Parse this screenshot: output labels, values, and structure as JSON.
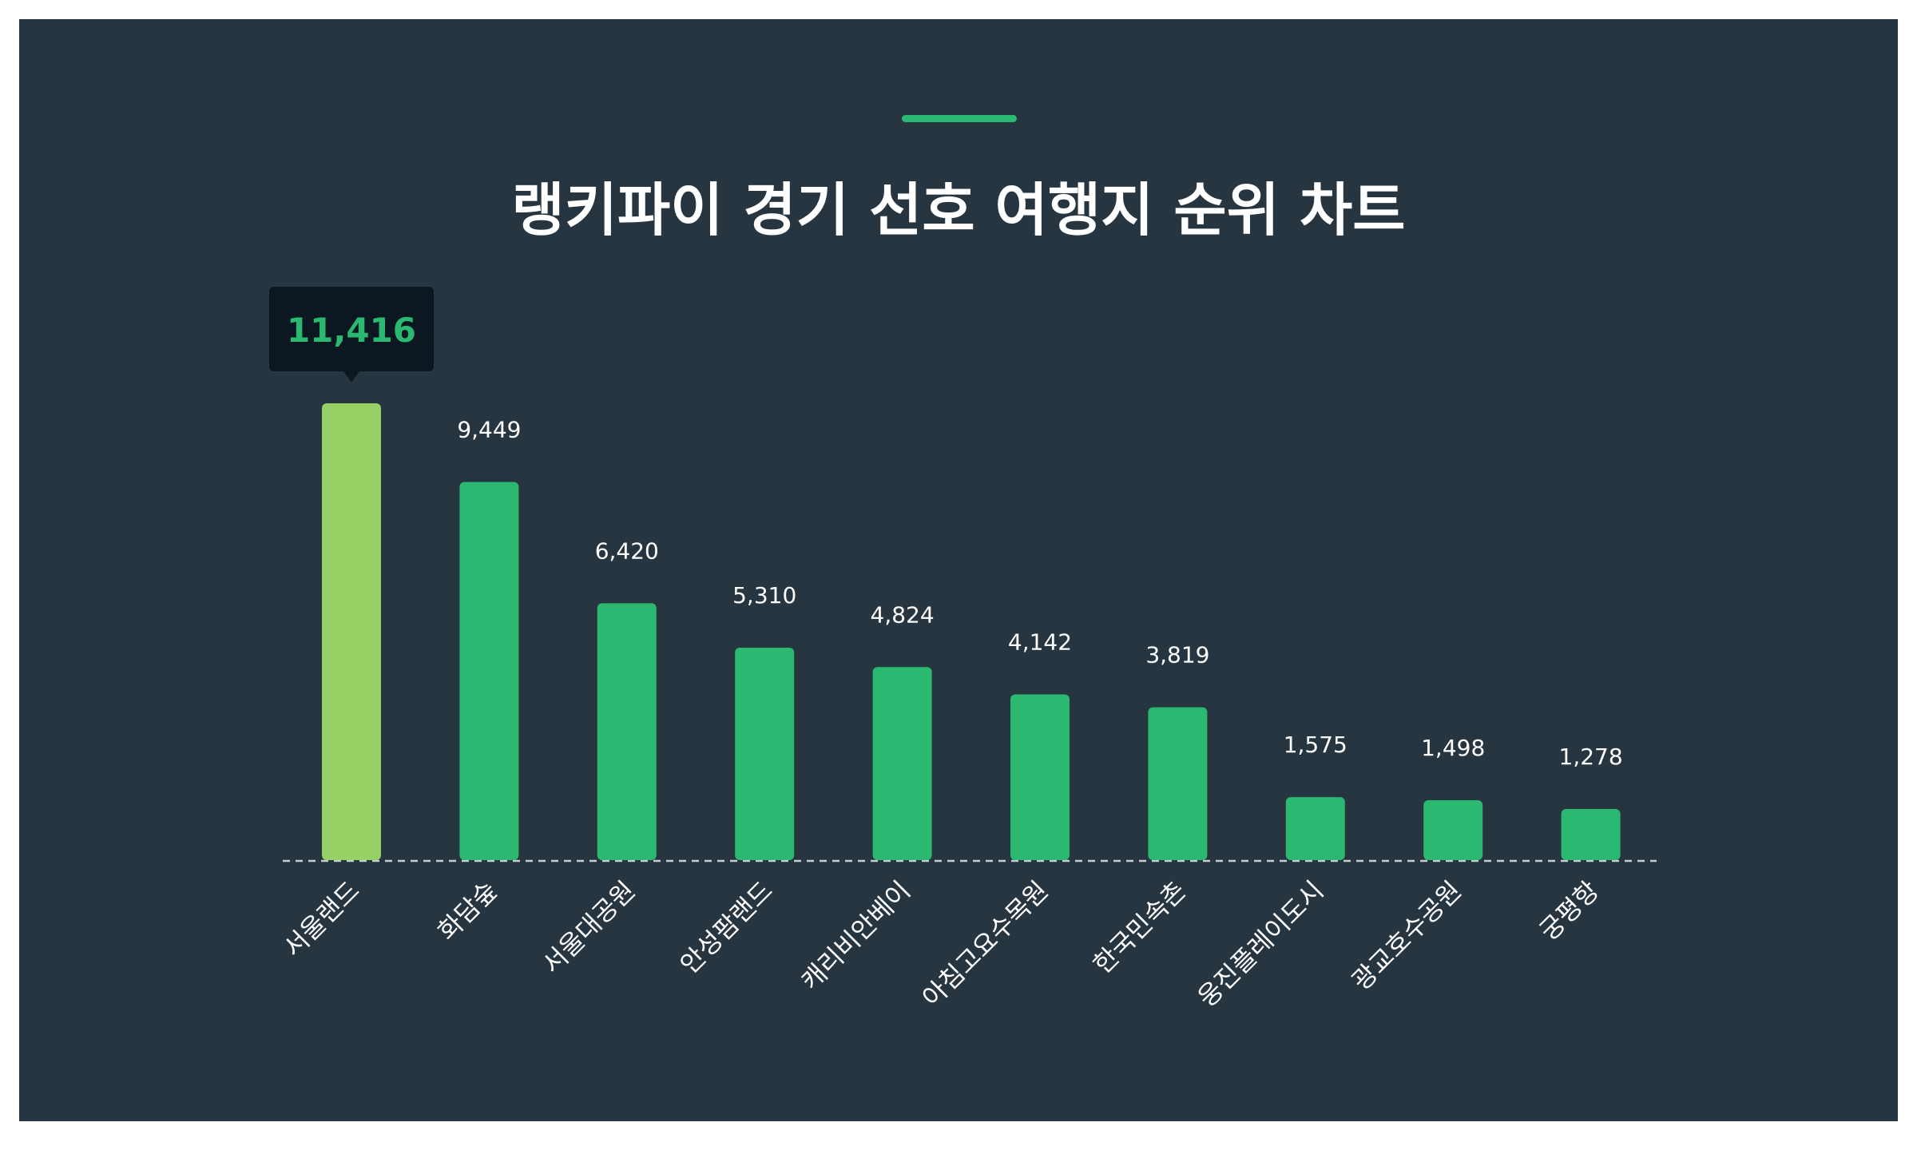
{
  "title": "랭키파이 경기 선호 여행지 순위 차트",
  "colors": {
    "background": "#263540",
    "bar": "#2bb871",
    "highlight_bar": "#97d065",
    "accent": "#2bb871",
    "tooltip_bg": "#0b1821",
    "tooltip_text": "#2bb871",
    "text": "#ffffff",
    "baseline": "#c8cdd2"
  },
  "chart_data": {
    "type": "bar",
    "title": "랭키파이 경기 선호 여행지 순위 차트",
    "categories": [
      "서울랜드",
      "화담숲",
      "서울대공원",
      "안성팜랜드",
      "캐리비안베이",
      "아침고요수목원",
      "한국민속촌",
      "웅진플레이도시",
      "광교호수공원",
      "궁평항"
    ],
    "values": [
      11416,
      9449,
      6420,
      5310,
      4824,
      4142,
      3819,
      1575,
      1498,
      1278
    ],
    "value_labels": [
      "11,416",
      "9,449",
      "6,420",
      "5,310",
      "4,824",
      "4,142",
      "3,819",
      "1,575",
      "1,498",
      "1,278"
    ],
    "highlight_index": 0,
    "ylim": [
      0,
      11416
    ],
    "xlabel": "",
    "ylabel": "",
    "grid": false,
    "legend": "none",
    "baseline": "dashed"
  }
}
